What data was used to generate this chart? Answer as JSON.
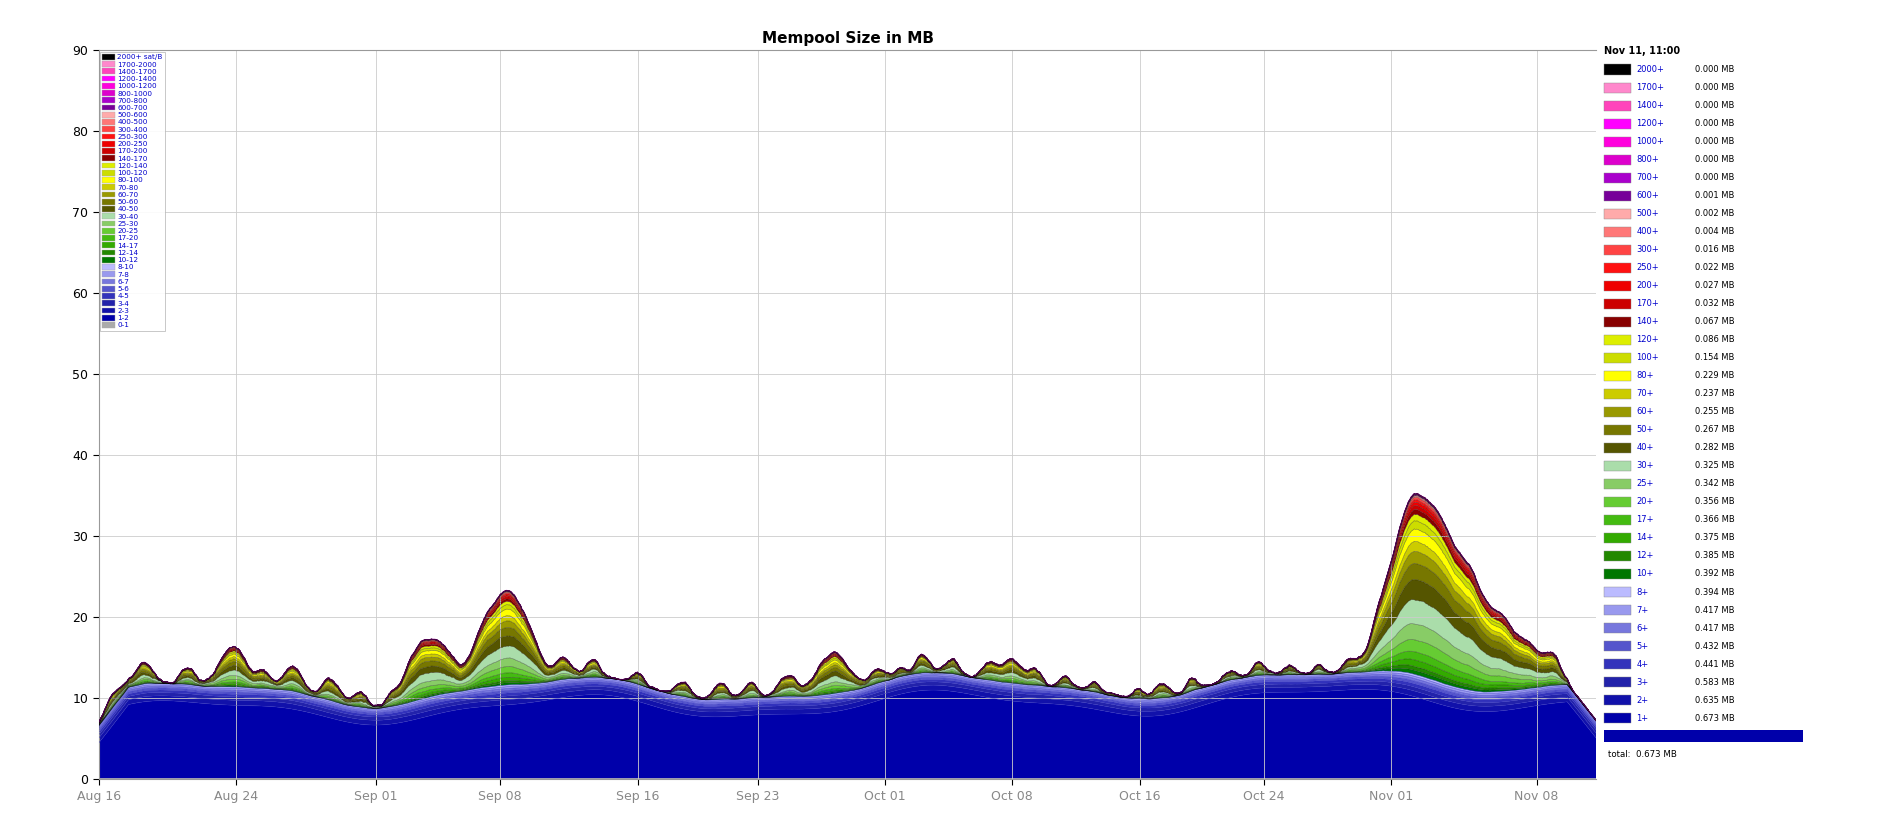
{
  "title": "Mempool Size in MB",
  "ylim": [
    0,
    90
  ],
  "yticks": [
    0,
    10,
    20,
    30,
    40,
    50,
    60,
    70,
    80,
    90
  ],
  "background_color": "#ffffff",
  "plot_bg_color": "#ffffff",
  "grid_color": "#cccccc",
  "fee_bands": [
    {
      "label": "2000+ sat/B",
      "color": "#000000"
    },
    {
      "label": "1700-2000",
      "color": "#ff88cc"
    },
    {
      "label": "1400-1700",
      "color": "#ff44bb"
    },
    {
      "label": "1200-1400",
      "color": "#ff00ff"
    },
    {
      "label": "1000-1200",
      "color": "#ff00dd"
    },
    {
      "label": "800-1000",
      "color": "#dd00cc"
    },
    {
      "label": "700-800",
      "color": "#aa00cc"
    },
    {
      "label": "600-700",
      "color": "#770099"
    },
    {
      "label": "500-600",
      "color": "#ffaaaa"
    },
    {
      "label": "400-500",
      "color": "#ff7777"
    },
    {
      "label": "300-400",
      "color": "#ff4444"
    },
    {
      "label": "250-300",
      "color": "#ff1111"
    },
    {
      "label": "200-250",
      "color": "#ee0000"
    },
    {
      "label": "170-200",
      "color": "#cc0000"
    },
    {
      "label": "140-170",
      "color": "#880000"
    },
    {
      "label": "120-140",
      "color": "#ddee00"
    },
    {
      "label": "100-120",
      "color": "#ccdd00"
    },
    {
      "label": "80-100",
      "color": "#ffff00"
    },
    {
      "label": "70-80",
      "color": "#cccc00"
    },
    {
      "label": "60-70",
      "color": "#999900"
    },
    {
      "label": "50-60",
      "color": "#777700"
    },
    {
      "label": "40-50",
      "color": "#555500"
    },
    {
      "label": "30-40",
      "color": "#aaddaa"
    },
    {
      "label": "25-30",
      "color": "#88cc66"
    },
    {
      "label": "20-25",
      "color": "#66cc33"
    },
    {
      "label": "17-20",
      "color": "#44bb11"
    },
    {
      "label": "14-17",
      "color": "#33aa00"
    },
    {
      "label": "12-14",
      "color": "#228800"
    },
    {
      "label": "10-12",
      "color": "#007700"
    },
    {
      "label": "8-10",
      "color": "#bbbbff"
    },
    {
      "label": "7-8",
      "color": "#9999ee"
    },
    {
      "label": "6-7",
      "color": "#7777dd"
    },
    {
      "label": "5-6",
      "color": "#5555cc"
    },
    {
      "label": "4-5",
      "color": "#3333bb"
    },
    {
      "label": "3-4",
      "color": "#2222aa"
    },
    {
      "label": "2-3",
      "color": "#1111aa"
    },
    {
      "label": "1-2",
      "color": "#0000aa"
    },
    {
      "label": "0-1",
      "color": "#aaaaaa"
    }
  ],
  "x_tick_labels": [
    "Aug 16",
    "Aug 24",
    "Sep 01",
    "Sep 08",
    "Sep 16",
    "Sep 23",
    "Oct 01",
    "Oct 08",
    "Oct 16",
    "Oct 24",
    "Nov 01",
    "Nov 08"
  ],
  "x_tick_positions": [
    0.0,
    0.092,
    0.185,
    0.268,
    0.36,
    0.44,
    0.525,
    0.61,
    0.695,
    0.778,
    0.863,
    0.96
  ],
  "right_legend_title": "Nov 11, 11:00",
  "right_legend_entries": [
    "2000+",
    "0.000 MB",
    "1700+",
    "0.000 MB",
    "1400+",
    "0.000 MB",
    "1200+",
    "0.000 MB",
    "1000+",
    "0.000 MB",
    "800+",
    "0.000 MB",
    "700+",
    "0.000 MB",
    "600+",
    "0.001 MB",
    "500+",
    "0.002 MB",
    "400+",
    "0.004 MB",
    "300+",
    "0.016 MB",
    "250+",
    "0.022 MB",
    "200+",
    "0.027 MB",
    "170+",
    "0.032 MB",
    "140+",
    "0.067 MB",
    "120+",
    "0.086 MB",
    "100+",
    "0.154 MB",
    "80+",
    "0.229 MB",
    "70+",
    "0.237 MB",
    "60+",
    "0.255 MB",
    "50+",
    "0.267 MB",
    "40+",
    "0.282 MB",
    "30+",
    "0.325 MB",
    "25+",
    "0.342 MB",
    "20+",
    "0.356 MB",
    "17+",
    "0.366 MB",
    "14+",
    "0.375 MB",
    "12+",
    "0.385 MB",
    "10+",
    "0.392 MB",
    "8+",
    "0.394 MB",
    "7+",
    "0.417 MB",
    "6+",
    "0.417 MB",
    "5+",
    "0.432 MB",
    "4+",
    "0.441 MB",
    "3+",
    "0.583 MB",
    "2+",
    "0.635 MB",
    "1+",
    "0.673 MB",
    "total:",
    "0.673 MB"
  ],
  "right_legend_colors": [
    "#000000",
    "#ff88cc",
    "#ff44bb",
    "#ff00ff",
    "#ff00dd",
    "#dd00cc",
    "#aa00cc",
    "#770099",
    "#ffaaaa",
    "#ff7777",
    "#ff4444",
    "#ff1111",
    "#ee0000",
    "#cc0000",
    "#880000",
    "#ddee00",
    "#ccdd00",
    "#ffff00",
    "#cccc00",
    "#999900",
    "#777700",
    "#555500",
    "#aaddaa",
    "#88cc66",
    "#66cc33",
    "#44bb11",
    "#33aa00",
    "#228800",
    "#007700",
    "#bbbbff",
    "#9999ee",
    "#7777dd",
    "#5555cc",
    "#3333bb",
    "#2222aa",
    "#1111aa",
    "#0000aa",
    "#aaaaaa"
  ],
  "spike_times": [
    0.01,
    0.03,
    0.06,
    0.085,
    0.095,
    0.11,
    0.13,
    0.155,
    0.175,
    0.195,
    0.21,
    0.225,
    0.255,
    0.268,
    0.278,
    0.29,
    0.31,
    0.33,
    0.36,
    0.39,
    0.415,
    0.435,
    0.46,
    0.49,
    0.52,
    0.535,
    0.55,
    0.57,
    0.595,
    0.61,
    0.625,
    0.645,
    0.665,
    0.695,
    0.71,
    0.73,
    0.755,
    0.775,
    0.795,
    0.815,
    0.835,
    0.855,
    0.865,
    0.875,
    0.885,
    0.895,
    0.905,
    0.915,
    0.925,
    0.94,
    0.955,
    0.97
  ],
  "spike_heights": [
    12,
    18,
    14,
    25,
    20,
    15,
    22,
    18,
    12,
    8,
    20,
    45,
    25,
    55,
    35,
    25,
    18,
    15,
    10,
    12,
    14,
    12,
    18,
    35,
    12,
    8,
    15,
    12,
    15,
    20,
    12,
    10,
    8,
    8,
    12,
    10,
    8,
    10,
    8,
    8,
    10,
    12,
    50,
    55,
    65,
    55,
    45,
    35,
    50,
    40,
    30,
    25
  ],
  "spike_widths": [
    0.006,
    0.006,
    0.005,
    0.007,
    0.006,
    0.005,
    0.006,
    0.006,
    0.005,
    0.004,
    0.007,
    0.012,
    0.007,
    0.01,
    0.008,
    0.007,
    0.006,
    0.005,
    0.004,
    0.005,
    0.005,
    0.005,
    0.006,
    0.01,
    0.005,
    0.004,
    0.005,
    0.005,
    0.005,
    0.006,
    0.005,
    0.004,
    0.004,
    0.004,
    0.005,
    0.004,
    0.004,
    0.005,
    0.004,
    0.004,
    0.005,
    0.005,
    0.012,
    0.01,
    0.012,
    0.01,
    0.01,
    0.008,
    0.01,
    0.008,
    0.007,
    0.006
  ]
}
